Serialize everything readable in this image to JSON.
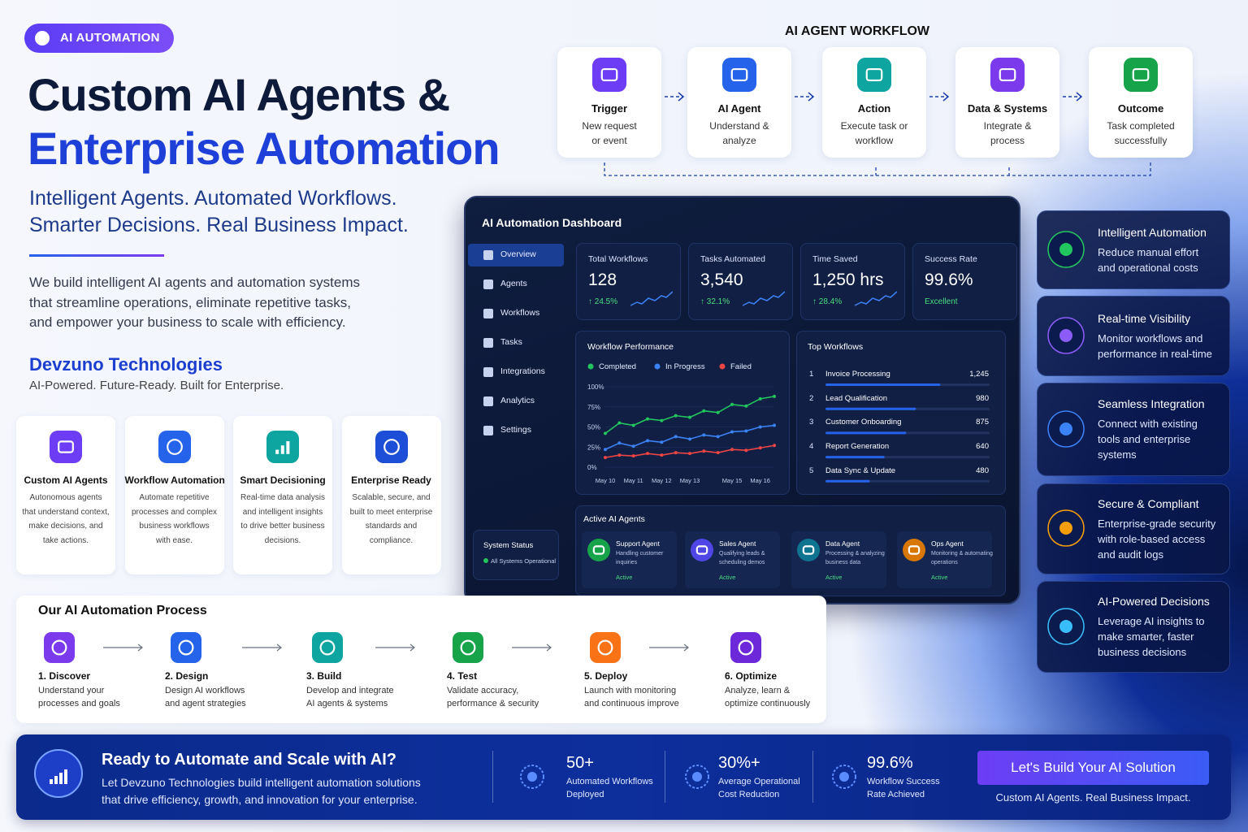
{
  "badge": "AI AUTOMATION",
  "hero": {
    "title": [
      "Custom AI Agents &",
      "Enterprise Automation"
    ],
    "tagline": [
      "Intelligent Agents. Automated Workflows.",
      "Smarter Decisions. Real Business Impact."
    ],
    "description": [
      "We build intelligent AI agents and automation systems",
      "that streamline operations, eliminate repetitive tasks,",
      "and empower your business to scale with efficiency."
    ],
    "company": "Devzuno Technologies",
    "company_tagline": "AI-Powered. Future-Ready. Built for Enterprise."
  },
  "features": [
    {
      "title": "Custom AI Agents",
      "text": [
        "Autonomous agents",
        "that understand context,",
        "make decisions, and",
        "take actions."
      ]
    },
    {
      "title": "Workflow Automation",
      "text": [
        "Automate repetitive",
        "processes and complex",
        "business workflows",
        "with ease."
      ]
    },
    {
      "title": "Smart Decisioning",
      "text": [
        "Real-time data analysis",
        "and intelligent insights",
        "to drive better business",
        "decisions."
      ]
    },
    {
      "title": "Enterprise Ready",
      "text": [
        "Scalable, secure, and",
        "built to meet enterprise",
        "standards and",
        "compliance."
      ]
    }
  ],
  "workflow": {
    "title": "AI AGENT WORKFLOW",
    "steps": [
      {
        "title": "Trigger",
        "text": [
          "New request",
          "or event"
        ]
      },
      {
        "title": "AI Agent",
        "text": [
          "Understand &",
          "analyze"
        ]
      },
      {
        "title": "Action",
        "text": [
          "Execute task or",
          "workflow"
        ]
      },
      {
        "title": "Data & Systems",
        "text": [
          "Integrate &",
          "process"
        ]
      },
      {
        "title": "Outcome",
        "text": [
          "Task completed",
          "successfully"
        ]
      }
    ]
  },
  "dashboard": {
    "title": "AI Automation Dashboard",
    "nav": [
      "Overview",
      "Agents",
      "Workflows",
      "Tasks",
      "Integrations",
      "Analytics",
      "Settings"
    ],
    "system_status": {
      "title": "System Status",
      "text": "All Systems Operational"
    },
    "kpis": [
      {
        "label": "Total Workflows",
        "value": "128",
        "change": "↑ 24.5%"
      },
      {
        "label": "Tasks Automated",
        "value": "3,540",
        "change": "↑ 32.1%"
      },
      {
        "label": "Time Saved",
        "value": "1,250 hrs",
        "change": "↑ 28.4%"
      },
      {
        "label": "Success Rate",
        "value": "99.6%",
        "change": "Excellent"
      }
    ],
    "top_workflows": {
      "title": "Top Workflows",
      "ranks": [
        1,
        2,
        3,
        4,
        5
      ],
      "names": [
        "Invoice Processing",
        "Lead Qualification",
        "Customer Onboarding",
        "Report Generation",
        "Data Sync & Update"
      ],
      "values": [
        1245,
        980,
        875,
        640,
        480
      ],
      "value_labels": [
        "1,245",
        "980",
        "875",
        "640",
        "480"
      ]
    },
    "agents": {
      "title": "Active AI Agents",
      "items": [
        {
          "name": "Support Agent",
          "text": [
            "Handling customer",
            "inquiries"
          ],
          "status": "Active"
        },
        {
          "name": "Sales Agent",
          "text": [
            "Qualifying leads &",
            "scheduling demos"
          ],
          "status": "Active"
        },
        {
          "name": "Data Agent",
          "text": [
            "Processing & analyzing",
            "business data"
          ],
          "status": "Active"
        },
        {
          "name": "Ops Agent",
          "text": [
            "Monitoring & automating",
            "operations"
          ],
          "status": "Active"
        }
      ]
    }
  },
  "chart_data": {
    "type": "line",
    "title": "Workflow Performance",
    "categories": [
      "May 10",
      null,
      "May 11",
      null,
      "May 12",
      null,
      "May 13",
      null,
      null,
      "May 15",
      null,
      "May 16",
      null
    ],
    "series": [
      {
        "name": "Completed",
        "color": "#22c55e",
        "values": [
          42,
          55,
          52,
          60,
          58,
          64,
          62,
          70,
          68,
          78,
          76,
          85,
          88
        ]
      },
      {
        "name": "In Progress",
        "color": "#3b82f6",
        "values": [
          22,
          30,
          26,
          33,
          31,
          38,
          35,
          40,
          38,
          44,
          45,
          50,
          52
        ]
      },
      {
        "name": "Failed",
        "color": "#ef4444",
        "values": [
          12,
          15,
          14,
          17,
          15,
          18,
          17,
          20,
          18,
          22,
          21,
          24,
          27
        ]
      }
    ],
    "ylim": [
      0,
      100
    ],
    "yticks": [
      {
        "value": 0,
        "label": "0%"
      },
      {
        "value": 25,
        "label": "25%"
      },
      {
        "value": 50,
        "label": "50%"
      },
      {
        "value": 75,
        "label": "75%"
      },
      {
        "value": 100,
        "label": "100%"
      }
    ],
    "grid": true
  },
  "benefits": [
    {
      "title": "Intelligent Automation",
      "text": [
        "Reduce manual effort",
        "and operational costs"
      ]
    },
    {
      "title": "Real-time Visibility",
      "text": [
        "Monitor workflows and",
        "performance in real-time"
      ]
    },
    {
      "title": "Seamless Integration",
      "text": [
        "Connect with existing",
        "tools and enterprise",
        "systems"
      ]
    },
    {
      "title": "Secure & Compliant",
      "text": [
        "Enterprise-grade security",
        "with role-based access",
        "and audit logs"
      ]
    },
    {
      "title": "AI-Powered Decisions",
      "text": [
        "Leverage AI insights to",
        "make smarter, faster",
        "business decisions"
      ]
    }
  ],
  "process": {
    "title": "Our AI Automation Process",
    "steps": [
      {
        "title": "1. Discover",
        "text": [
          "Understand your",
          "processes and goals"
        ]
      },
      {
        "title": "2. Design",
        "text": [
          "Design AI workflows",
          "and agent strategies"
        ]
      },
      {
        "title": "3. Build",
        "text": [
          "Develop and integrate",
          "AI agents & systems"
        ]
      },
      {
        "title": "4. Test",
        "text": [
          "Validate accuracy,",
          "performance & security"
        ]
      },
      {
        "title": "5. Deploy",
        "text": [
          "Launch with monitoring",
          "and continuous improve"
        ]
      },
      {
        "title": "6. Optimize",
        "text": [
          "Analyze, learn &",
          "optimize continuously"
        ]
      }
    ]
  },
  "cta": {
    "title": "Ready to Automate and Scale with AI?",
    "text": [
      "Let Devzuno Technologies build intelligent automation solutions",
      "that drive efficiency, growth, and innovation for your enterprise."
    ],
    "stats": [
      {
        "value": "50+",
        "text": [
          "Automated Workflows",
          "Deployed"
        ]
      },
      {
        "value": "30%+",
        "text": [
          "Average Operational",
          "Cost Reduction"
        ]
      },
      {
        "value": "99.6%",
        "text": [
          "Workflow Success",
          "Rate Achieved"
        ]
      }
    ],
    "button": "Let's Build Your AI Solution",
    "caption": "Custom AI Agents. Real Business Impact."
  }
}
